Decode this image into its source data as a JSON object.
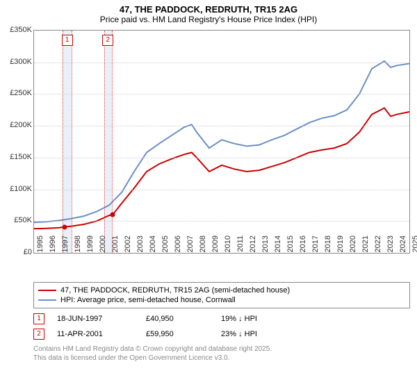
{
  "title": {
    "line1": "47, THE PADDOCK, REDRUTH, TR15 2AG",
    "line2": "Price paid vs. HM Land Registry's House Price Index (HPI)"
  },
  "chart": {
    "type": "line",
    "background_color": "#ffffff",
    "grid_color": "#cccccc",
    "border_color": "#888888",
    "shade_color": "#eaf0f8",
    "shade_border_color": "#e04040",
    "y_axis": {
      "min": 0,
      "max": 350000,
      "step": 50000,
      "ticks": [
        "£0",
        "£50K",
        "£100K",
        "£150K",
        "£200K",
        "£250K",
        "£300K",
        "£350K"
      ],
      "fontsize": 11
    },
    "x_axis": {
      "years": [
        1995,
        1996,
        1997,
        1998,
        1999,
        2000,
        2001,
        2002,
        2003,
        2004,
        2005,
        2006,
        2007,
        2008,
        2009,
        2010,
        2011,
        2012,
        2013,
        2014,
        2015,
        2016,
        2017,
        2018,
        2019,
        2020,
        2021,
        2022,
        2023,
        2024,
        2025
      ],
      "fontsize": 11
    },
    "shade_ranges": [
      {
        "start_year": 1997.3,
        "end_year": 1998.0
      },
      {
        "start_year": 2000.6,
        "end_year": 2001.2
      }
    ],
    "marker_labels": [
      "1",
      "2"
    ],
    "series": [
      {
        "name": "price_paid",
        "label": "47, THE PADDOCK, REDRUTH, TR15 2AG (semi-detached house)",
        "color": "#cc0000",
        "width": 2,
        "points": [
          [
            1995,
            38000
          ],
          [
            1996,
            38500
          ],
          [
            1997,
            39500
          ],
          [
            1997.46,
            40950
          ],
          [
            1998,
            42000
          ],
          [
            1999,
            45000
          ],
          [
            2000,
            50000
          ],
          [
            2001,
            59000
          ],
          [
            2001.28,
            59950
          ],
          [
            2002,
            78000
          ],
          [
            2003,
            102000
          ],
          [
            2004,
            128000
          ],
          [
            2005,
            140000
          ],
          [
            2006,
            148000
          ],
          [
            2007,
            155000
          ],
          [
            2007.6,
            158000
          ],
          [
            2008,
            150000
          ],
          [
            2009,
            128000
          ],
          [
            2010,
            138000
          ],
          [
            2011,
            132000
          ],
          [
            2012,
            128000
          ],
          [
            2013,
            130000
          ],
          [
            2014,
            136000
          ],
          [
            2015,
            142000
          ],
          [
            2016,
            150000
          ],
          [
            2017,
            158000
          ],
          [
            2018,
            162000
          ],
          [
            2019,
            165000
          ],
          [
            2020,
            172000
          ],
          [
            2021,
            190000
          ],
          [
            2022,
            218000
          ],
          [
            2023,
            228000
          ],
          [
            2023.5,
            215000
          ],
          [
            2024,
            218000
          ],
          [
            2025,
            222000
          ]
        ]
      },
      {
        "name": "hpi",
        "label": "HPI: Average price, semi-detached house, Cornwall",
        "color": "#6a8fc7",
        "width": 2,
        "points": [
          [
            1995,
            48000
          ],
          [
            1996,
            49000
          ],
          [
            1997,
            51000
          ],
          [
            1998,
            54000
          ],
          [
            1999,
            58000
          ],
          [
            2000,
            65000
          ],
          [
            2001,
            75000
          ],
          [
            2002,
            95000
          ],
          [
            2003,
            128000
          ],
          [
            2004,
            158000
          ],
          [
            2005,
            172000
          ],
          [
            2006,
            185000
          ],
          [
            2007,
            198000
          ],
          [
            2007.6,
            202000
          ],
          [
            2008,
            190000
          ],
          [
            2009,
            165000
          ],
          [
            2010,
            178000
          ],
          [
            2011,
            172000
          ],
          [
            2012,
            168000
          ],
          [
            2013,
            170000
          ],
          [
            2014,
            178000
          ],
          [
            2015,
            185000
          ],
          [
            2016,
            195000
          ],
          [
            2017,
            205000
          ],
          [
            2018,
            212000
          ],
          [
            2019,
            216000
          ],
          [
            2020,
            225000
          ],
          [
            2021,
            250000
          ],
          [
            2022,
            290000
          ],
          [
            2023,
            302000
          ],
          [
            2023.5,
            292000
          ],
          [
            2024,
            295000
          ],
          [
            2025,
            298000
          ]
        ]
      }
    ],
    "sale_points": [
      {
        "year": 1997.46,
        "value": 40950,
        "color": "#cc0000"
      },
      {
        "year": 2001.28,
        "value": 59950,
        "color": "#cc0000"
      }
    ]
  },
  "sales": [
    {
      "n": "1",
      "date": "18-JUN-1997",
      "price": "£40,950",
      "delta": "19% ↓ HPI"
    },
    {
      "n": "2",
      "date": "11-APR-2001",
      "price": "£59,950",
      "delta": "23% ↓ HPI"
    }
  ],
  "footer": {
    "line1": "Contains HM Land Registry data © Crown copyright and database right 2025.",
    "line2": "This data is licensed under the Open Government Licence v3.0."
  }
}
